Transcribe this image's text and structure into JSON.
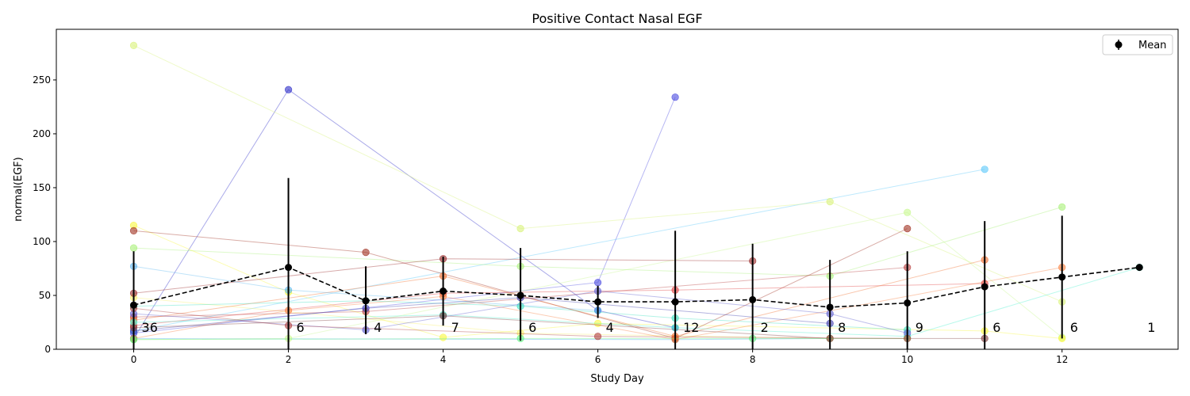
{
  "chart_data": {
    "type": "line",
    "title": "Positive Contact Nasal EGF",
    "xlabel": "Study Day",
    "ylabel": "normal(EGF)",
    "xlim": [
      -1,
      13.5
    ],
    "ylim": [
      0,
      297
    ],
    "xticks": [
      0,
      2,
      4,
      6,
      8,
      10,
      12
    ],
    "yticks": [
      0,
      50,
      100,
      150,
      200,
      250
    ],
    "legend": {
      "position": "top-right",
      "entries": [
        "Mean"
      ]
    },
    "mean_series": {
      "name": "Mean",
      "color": "#000000",
      "points": [
        {
          "x": 0,
          "y": 41,
          "lo": 0,
          "hi": 91
        },
        {
          "x": 2,
          "y": 76,
          "lo": 0,
          "hi": 159
        },
        {
          "x": 3,
          "y": 45,
          "lo": 14,
          "hi": 77
        },
        {
          "x": 4,
          "y": 54,
          "lo": 22,
          "hi": 86
        },
        {
          "x": 5,
          "y": 50,
          "lo": 8,
          "hi": 94
        },
        {
          "x": 6,
          "y": 44,
          "lo": 29,
          "hi": 59
        },
        {
          "x": 7,
          "y": 44,
          "lo": 0,
          "hi": 110
        },
        {
          "x": 8,
          "y": 46,
          "lo": 0,
          "hi": 98
        },
        {
          "x": 9,
          "y": 39,
          "lo": 0,
          "hi": 83
        },
        {
          "x": 10,
          "y": 43,
          "lo": 0,
          "hi": 91
        },
        {
          "x": 11,
          "y": 58,
          "lo": 0,
          "hi": 119
        },
        {
          "x": 12,
          "y": 67,
          "lo": 10,
          "hi": 124
        },
        {
          "x": 13,
          "y": 76,
          "lo": 76,
          "hi": 76
        }
      ]
    },
    "counts": [
      {
        "x": 0,
        "n": "36"
      },
      {
        "x": 2,
        "n": "6"
      },
      {
        "x": 3,
        "n": "4"
      },
      {
        "x": 4,
        "n": "7"
      },
      {
        "x": 5,
        "n": "6"
      },
      {
        "x": 6,
        "n": "4"
      },
      {
        "x": 7,
        "n": "12"
      },
      {
        "x": 8,
        "n": "2"
      },
      {
        "x": 9,
        "n": "8"
      },
      {
        "x": 10,
        "n": "9"
      },
      {
        "x": 11,
        "n": "6"
      },
      {
        "x": 12,
        "n": "6"
      },
      {
        "x": 13,
        "n": "1"
      }
    ],
    "subjects": [
      {
        "color": "#2b2bc8",
        "points": [
          [
            0,
            10
          ],
          [
            2,
            241
          ],
          [
            6,
            36
          ],
          [
            7,
            20
          ]
        ]
      },
      {
        "color": "#4a4ae0",
        "points": [
          [
            0,
            15
          ],
          [
            6,
            62
          ],
          [
            7,
            234
          ]
        ]
      },
      {
        "color": "#4ab0f0",
        "points": [
          [
            0,
            10
          ],
          [
            7,
            9
          ],
          [
            9,
            10
          ]
        ]
      },
      {
        "color": "#5ac8fa",
        "points": [
          [
            0,
            17
          ],
          [
            11,
            167
          ]
        ]
      },
      {
        "color": "#d8f27a",
        "points": [
          [
            0,
            282
          ],
          [
            5,
            112
          ],
          [
            9,
            137
          ],
          [
            12,
            44
          ]
        ]
      },
      {
        "color": "#a8f078",
        "points": [
          [
            0,
            94
          ],
          [
            5,
            77
          ],
          [
            9,
            68
          ],
          [
            12,
            132
          ]
        ]
      },
      {
        "color": "#c8f890",
        "points": [
          [
            0,
            9
          ],
          [
            2,
            10
          ],
          [
            10,
            127
          ],
          [
            12,
            11
          ]
        ]
      },
      {
        "color": "#f8f840",
        "points": [
          [
            0,
            115
          ],
          [
            2,
            53
          ],
          [
            4,
            11
          ],
          [
            6,
            24
          ],
          [
            11,
            17
          ],
          [
            12,
            10
          ]
        ]
      },
      {
        "color": "#f8f06a",
        "points": [
          [
            0,
            48
          ],
          [
            5,
            15
          ],
          [
            9,
            10
          ]
        ]
      },
      {
        "color": "#a03020",
        "points": [
          [
            0,
            110
          ],
          [
            3,
            90
          ],
          [
            7,
            10
          ],
          [
            10,
            112
          ]
        ]
      },
      {
        "color": "#9a2a2a",
        "points": [
          [
            0,
            52
          ],
          [
            4,
            84
          ],
          [
            8,
            82
          ]
        ]
      },
      {
        "color": "#b84040",
        "points": [
          [
            0,
            30
          ],
          [
            3,
            35
          ],
          [
            10,
            76
          ]
        ]
      },
      {
        "color": "#e04040",
        "points": [
          [
            0,
            22
          ],
          [
            4,
            52
          ],
          [
            7,
            55
          ],
          [
            11,
            61
          ]
        ]
      },
      {
        "color": "#f07030",
        "points": [
          [
            0,
            27
          ],
          [
            4,
            68
          ],
          [
            7,
            12
          ],
          [
            11,
            83
          ]
        ]
      },
      {
        "color": "#f88040",
        "points": [
          [
            0,
            10
          ],
          [
            2,
            36
          ],
          [
            4,
            49
          ],
          [
            7,
            9
          ],
          [
            12,
            76
          ]
        ]
      },
      {
        "color": "#60b8f0",
        "points": [
          [
            0,
            77
          ],
          [
            2,
            55
          ],
          [
            6,
            36
          ]
        ]
      },
      {
        "color": "#40e0c0",
        "points": [
          [
            0,
            40
          ],
          [
            3,
            45
          ],
          [
            5,
            40
          ],
          [
            7,
            29
          ],
          [
            10,
            18
          ]
        ]
      },
      {
        "color": "#50f0d0",
        "points": [
          [
            0,
            25
          ],
          [
            4,
            32
          ],
          [
            7,
            20
          ],
          [
            10,
            12
          ],
          [
            13,
            76
          ]
        ]
      },
      {
        "color": "#6060d0",
        "points": [
          [
            0,
            33
          ],
          [
            3,
            18
          ],
          [
            6,
            54
          ],
          [
            9,
            33
          ],
          [
            10,
            15
          ]
        ]
      },
      {
        "color": "#4040b0",
        "points": [
          [
            0,
            17
          ],
          [
            3,
            38
          ],
          [
            5,
            48
          ],
          [
            9,
            24
          ]
        ]
      },
      {
        "color": "#804040",
        "points": [
          [
            0,
            20
          ],
          [
            4,
            31
          ],
          [
            9,
            10
          ],
          [
            11,
            10
          ]
        ]
      },
      {
        "color": "#60f080",
        "points": [
          [
            0,
            9
          ],
          [
            5,
            10
          ],
          [
            8,
            10
          ],
          [
            10,
            10
          ]
        ]
      },
      {
        "color": "#b04040",
        "points": [
          [
            0,
            38
          ],
          [
            2,
            22
          ],
          [
            6,
            12
          ],
          [
            10,
            10
          ]
        ]
      }
    ]
  }
}
